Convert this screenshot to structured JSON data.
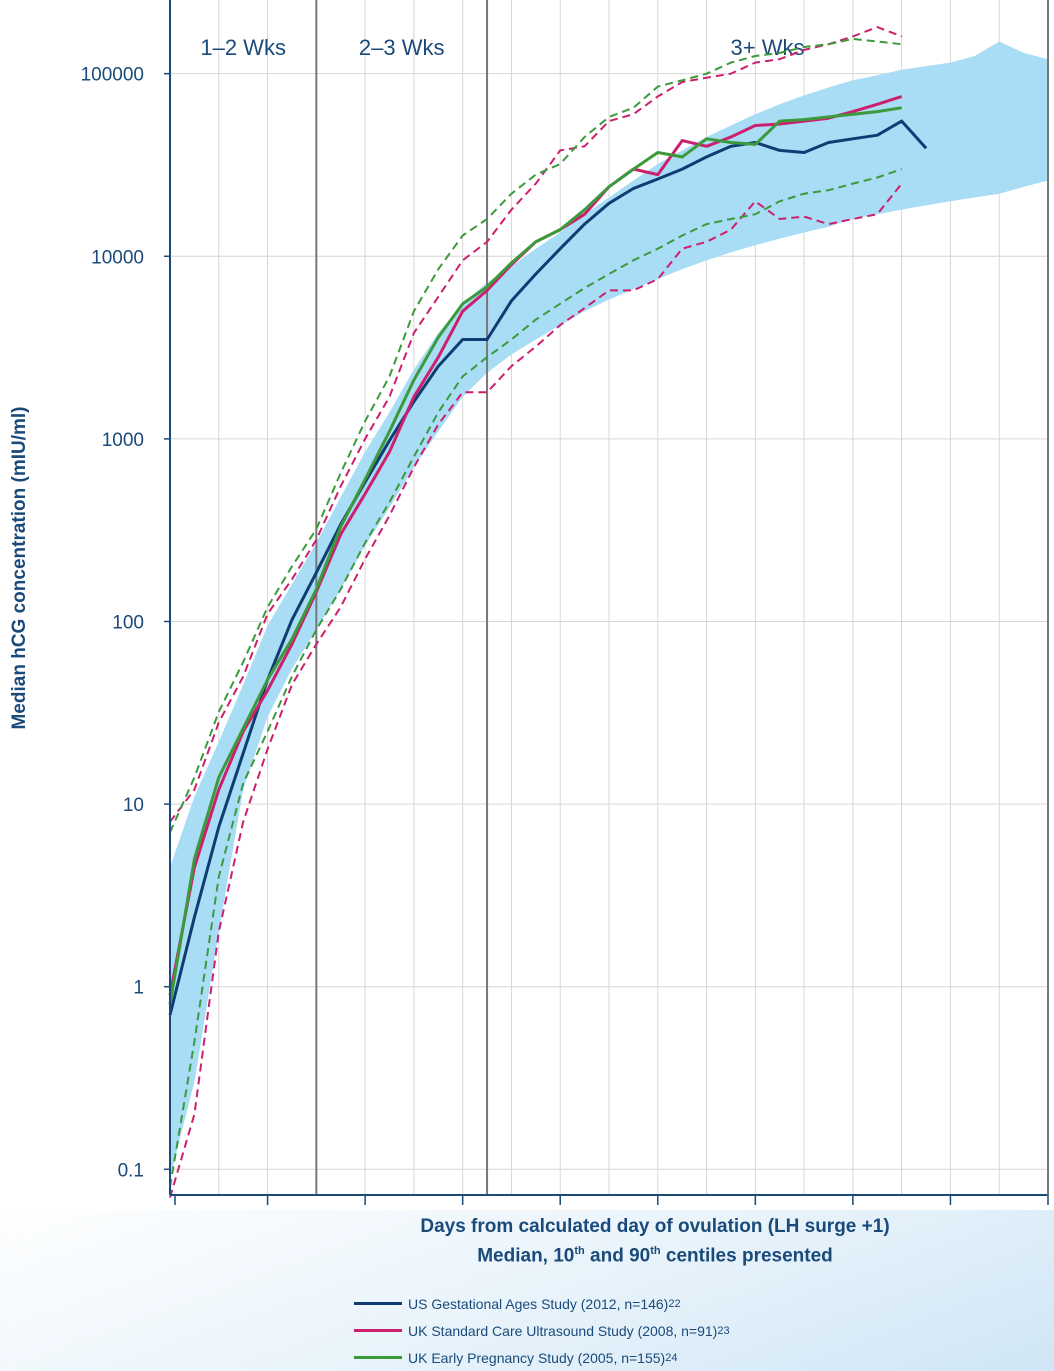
{
  "chart_data": {
    "type": "line",
    "title": "",
    "xlabel_line1": "Days from calculated day of ovulation (LH surge +1)",
    "xlabel_line2_parts": [
      "Median, 10",
      "th",
      " and 90",
      "th",
      " centiles presented"
    ],
    "ylabel": "Median hCG concentration (mIU/ml)",
    "y_scale": "log",
    "ylim": [
      0.08,
      250000
    ],
    "y_ticks": [
      "0.1",
      "1",
      "10",
      "100",
      "1000",
      "10000",
      "100000"
    ],
    "x_tick_labels": [],
    "regions": [
      {
        "label": "1–2 Wks",
        "start": 8,
        "end": 14
      },
      {
        "label": "2–3 Wks",
        "start": 14,
        "end": 21
      },
      {
        "label": "3+ Wks",
        "start": 21,
        "end": 44
      }
    ],
    "grid": true,
    "legend_position": "bottom",
    "band": {
      "color": "#a9dcf5",
      "upper": [
        [
          8,
          4.5
        ],
        [
          9,
          11
        ],
        [
          10,
          22
        ],
        [
          11,
          45
        ],
        [
          12,
          95
        ],
        [
          13,
          160
        ],
        [
          14,
          270
        ],
        [
          15,
          480
        ],
        [
          16,
          850
        ],
        [
          17,
          1400
        ],
        [
          18,
          2400
        ],
        [
          19,
          3800
        ],
        [
          20,
          5500
        ],
        [
          21,
          7200
        ],
        [
          22,
          8800
        ],
        [
          23,
          11000
        ],
        [
          24,
          13500
        ],
        [
          25,
          17000
        ],
        [
          26,
          21000
        ],
        [
          27,
          26000
        ],
        [
          28,
          32000
        ],
        [
          29,
          38000
        ],
        [
          30,
          45000
        ],
        [
          31,
          52000
        ],
        [
          32,
          60000
        ],
        [
          33,
          68000
        ],
        [
          34,
          76000
        ],
        [
          35,
          84000
        ],
        [
          36,
          92000
        ],
        [
          37,
          98000
        ],
        [
          38,
          105000
        ],
        [
          39,
          110000
        ],
        [
          40,
          115000
        ],
        [
          41,
          125000
        ],
        [
          42,
          150000
        ],
        [
          43,
          130000
        ],
        [
          44,
          120000
        ]
      ],
      "lower": [
        [
          8,
          0.09
        ],
        [
          9,
          0.3
        ],
        [
          10,
          2
        ],
        [
          11,
          12
        ],
        [
          12,
          30
        ],
        [
          13,
          55
        ],
        [
          14,
          90
        ],
        [
          15,
          150
        ],
        [
          16,
          260
        ],
        [
          17,
          420
        ],
        [
          18,
          700
        ],
        [
          19,
          1100
        ],
        [
          20,
          1700
        ],
        [
          21,
          2300
        ],
        [
          22,
          2900
        ],
        [
          23,
          3500
        ],
        [
          24,
          4200
        ],
        [
          25,
          5000
        ],
        [
          26,
          5800
        ],
        [
          27,
          6600
        ],
        [
          28,
          7500
        ],
        [
          29,
          8500
        ],
        [
          30,
          9500
        ],
        [
          31,
          10500
        ],
        [
          32,
          11500
        ],
        [
          33,
          12500
        ],
        [
          34,
          13500
        ],
        [
          35,
          14500
        ],
        [
          36,
          16000
        ],
        [
          37,
          17000
        ],
        [
          38,
          18000
        ],
        [
          39,
          19000
        ],
        [
          40,
          20000
        ],
        [
          41,
          21000
        ],
        [
          42,
          22000
        ],
        [
          43,
          24000
        ],
        [
          44,
          26000
        ]
      ]
    },
    "series": [
      {
        "name": "US Gestational Ages Study (2012, n=146)",
        "ref": "22",
        "color": "#0f3d73",
        "median": [
          [
            8,
            0.7
          ],
          [
            9,
            2.4
          ],
          [
            10,
            7.5
          ],
          [
            11,
            19
          ],
          [
            12,
            48
          ],
          [
            13,
            102
          ],
          [
            14,
            185
          ],
          [
            15,
            340
          ],
          [
            16,
            580
          ],
          [
            17,
            980
          ],
          [
            18,
            1600
          ],
          [
            19,
            2500
          ],
          [
            20,
            3500
          ],
          [
            21,
            3500
          ],
          [
            22,
            5700
          ],
          [
            23,
            8000
          ],
          [
            24,
            11000
          ],
          [
            25,
            15000
          ],
          [
            26,
            19500
          ],
          [
            27,
            23500
          ],
          [
            28,
            26500
          ],
          [
            29,
            30000
          ],
          [
            30,
            35000
          ],
          [
            31,
            40000
          ],
          [
            32,
            42000
          ],
          [
            33,
            38000
          ],
          [
            34,
            37000
          ],
          [
            35,
            42000
          ],
          [
            36,
            44000
          ],
          [
            37,
            46000
          ],
          [
            38,
            55000
          ],
          [
            39,
            39000
          ]
        ]
      },
      {
        "name": "UK Standard Care Ultrasound Study (2008, n=91)",
        "ref": "23",
        "color": "#cc1f6e",
        "median": [
          [
            8,
            0.9
          ],
          [
            9,
            4.5
          ],
          [
            10,
            12
          ],
          [
            11,
            25
          ],
          [
            12,
            42
          ],
          [
            13,
            75
          ],
          [
            14,
            145
          ],
          [
            15,
            300
          ],
          [
            16,
            500
          ],
          [
            17,
            850
          ],
          [
            18,
            1700
          ],
          [
            19,
            2800
          ],
          [
            20,
            5000
          ],
          [
            21,
            6500
          ],
          [
            22,
            9000
          ],
          [
            23,
            12000
          ],
          [
            24,
            14000
          ],
          [
            25,
            17000
          ],
          [
            26,
            24000
          ],
          [
            27,
            30000
          ],
          [
            28,
            28000
          ],
          [
            29,
            43000
          ],
          [
            30,
            40000
          ],
          [
            31,
            45000
          ],
          [
            32,
            52000
          ],
          [
            33,
            53000
          ],
          [
            34,
            55000
          ],
          [
            35,
            57000
          ],
          [
            36,
            62000
          ],
          [
            37,
            68000
          ],
          [
            38,
            75000
          ]
        ],
        "p90": [
          [
            8,
            8
          ],
          [
            9,
            12
          ],
          [
            10,
            28
          ],
          [
            11,
            50
          ],
          [
            12,
            110
          ],
          [
            13,
            170
          ],
          [
            14,
            280
          ],
          [
            15,
            550
          ],
          [
            16,
            1000
          ],
          [
            17,
            1700
          ],
          [
            18,
            3800
          ],
          [
            19,
            6000
          ],
          [
            20,
            9500
          ],
          [
            21,
            12000
          ],
          [
            22,
            18000
          ],
          [
            23,
            25000
          ],
          [
            24,
            38000
          ],
          [
            25,
            40000
          ],
          [
            26,
            55000
          ],
          [
            27,
            60000
          ],
          [
            28,
            75000
          ],
          [
            29,
            90000
          ],
          [
            30,
            95000
          ],
          [
            31,
            100000
          ],
          [
            32,
            115000
          ],
          [
            33,
            120000
          ],
          [
            34,
            135000
          ],
          [
            35,
            145000
          ],
          [
            36,
            160000
          ],
          [
            37,
            180000
          ],
          [
            38,
            160000
          ]
        ],
        "p10": [
          [
            8,
            0.07
          ],
          [
            9,
            0.2
          ],
          [
            10,
            2
          ],
          [
            11,
            8
          ],
          [
            12,
            20
          ],
          [
            13,
            45
          ],
          [
            14,
            75
          ],
          [
            15,
            120
          ],
          [
            16,
            220
          ],
          [
            17,
            380
          ],
          [
            18,
            700
          ],
          [
            19,
            1200
          ],
          [
            20,
            1800
          ],
          [
            21,
            1800
          ],
          [
            22,
            2500
          ],
          [
            23,
            3200
          ],
          [
            24,
            4200
          ],
          [
            25,
            5200
          ],
          [
            26,
            6500
          ],
          [
            27,
            6500
          ],
          [
            28,
            7500
          ],
          [
            29,
            11000
          ],
          [
            30,
            12000
          ],
          [
            31,
            14000
          ],
          [
            32,
            20000
          ],
          [
            33,
            16000
          ],
          [
            34,
            16500
          ],
          [
            35,
            15000
          ],
          [
            36,
            16000
          ],
          [
            37,
            17000
          ],
          [
            38,
            25000
          ]
        ]
      },
      {
        "name": "UK Early Pregnancy Study (2005, n=155)",
        "ref": "24",
        "color": "#3c9a3c",
        "median": [
          [
            8,
            0.8
          ],
          [
            9,
            5
          ],
          [
            10,
            14
          ],
          [
            11,
            26
          ],
          [
            12,
            48
          ],
          [
            13,
            80
          ],
          [
            14,
            150
          ],
          [
            15,
            330
          ],
          [
            16,
            600
          ],
          [
            17,
            1100
          ],
          [
            18,
            2100
          ],
          [
            19,
            3600
          ],
          [
            20,
            5500
          ],
          [
            21,
            6800
          ],
          [
            22,
            9200
          ],
          [
            23,
            12000
          ],
          [
            24,
            14000
          ],
          [
            25,
            18000
          ],
          [
            26,
            24000
          ],
          [
            27,
            30000
          ],
          [
            28,
            37000
          ],
          [
            29,
            35000
          ],
          [
            30,
            44000
          ],
          [
            31,
            42000
          ],
          [
            32,
            41000
          ],
          [
            33,
            55000
          ],
          [
            34,
            56000
          ],
          [
            35,
            58000
          ],
          [
            36,
            60000
          ],
          [
            37,
            62000
          ],
          [
            38,
            65000
          ]
        ],
        "p90": [
          [
            8,
            7
          ],
          [
            9,
            14
          ],
          [
            10,
            32
          ],
          [
            11,
            60
          ],
          [
            12,
            120
          ],
          [
            13,
            200
          ],
          [
            14,
            320
          ],
          [
            15,
            650
          ],
          [
            16,
            1250
          ],
          [
            17,
            2200
          ],
          [
            18,
            5000
          ],
          [
            19,
            8500
          ],
          [
            20,
            13000
          ],
          [
            21,
            16000
          ],
          [
            22,
            22000
          ],
          [
            23,
            28000
          ],
          [
            24,
            32000
          ],
          [
            25,
            45000
          ],
          [
            26,
            58000
          ],
          [
            27,
            65000
          ],
          [
            28,
            85000
          ],
          [
            29,
            92000
          ],
          [
            30,
            100000
          ],
          [
            31,
            115000
          ],
          [
            32,
            125000
          ],
          [
            33,
            130000
          ],
          [
            34,
            140000
          ],
          [
            35,
            145000
          ],
          [
            36,
            155000
          ],
          [
            37,
            150000
          ],
          [
            38,
            145000
          ]
        ],
        "p10": [
          [
            8,
            0.08
          ],
          [
            9,
            0.5
          ],
          [
            10,
            4
          ],
          [
            11,
            13
          ],
          [
            12,
            25
          ],
          [
            13,
            50
          ],
          [
            14,
            90
          ],
          [
            15,
            150
          ],
          [
            16,
            270
          ],
          [
            17,
            450
          ],
          [
            18,
            800
          ],
          [
            19,
            1400
          ],
          [
            20,
            2200
          ],
          [
            21,
            2800
          ],
          [
            22,
            3500
          ],
          [
            23,
            4500
          ],
          [
            24,
            5500
          ],
          [
            25,
            6700
          ],
          [
            26,
            8000
          ],
          [
            27,
            9500
          ],
          [
            28,
            11000
          ],
          [
            29,
            13000
          ],
          [
            30,
            15000
          ],
          [
            31,
            16000
          ],
          [
            32,
            17000
          ],
          [
            33,
            20000
          ],
          [
            34,
            22000
          ],
          [
            35,
            23000
          ],
          [
            36,
            25000
          ],
          [
            37,
            27000
          ],
          [
            38,
            30000
          ]
        ]
      }
    ]
  }
}
